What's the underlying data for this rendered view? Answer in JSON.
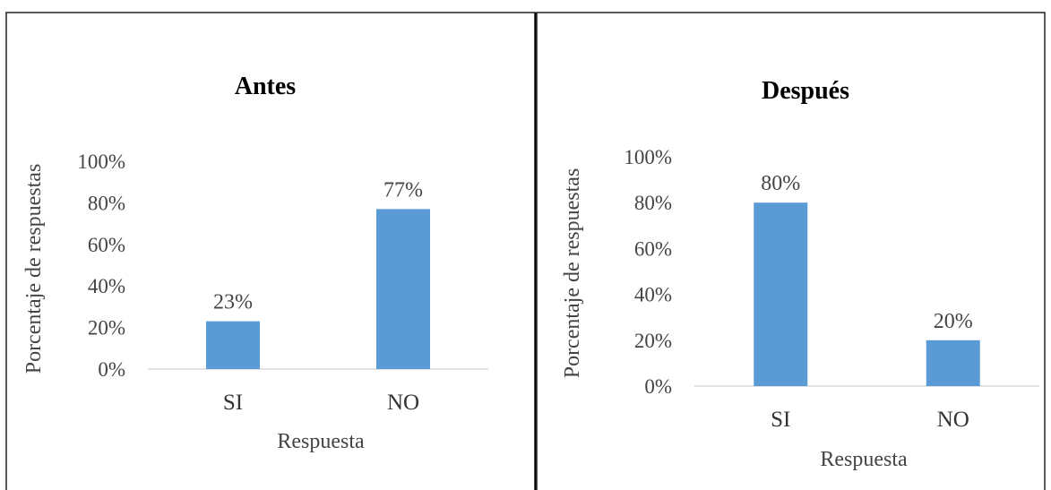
{
  "chart_data": [
    {
      "type": "bar",
      "title": "Antes",
      "xlabel": "Respuesta",
      "ylabel": "Porcentaje de respuestas",
      "categories": [
        "SI",
        "NO"
      ],
      "values": [
        23,
        77
      ],
      "data_labels": [
        "23%",
        "77%"
      ],
      "ylim": [
        0,
        100
      ],
      "yticks": [
        "0%",
        "20%",
        "40%",
        "60%",
        "80%",
        "100%"
      ],
      "grid": false,
      "legend": "none",
      "bar_color": "#5b9bd5"
    },
    {
      "type": "bar",
      "title": "Después",
      "xlabel": "Respuesta",
      "ylabel": "Porcentaje de respuestas",
      "categories": [
        "SI",
        "NO"
      ],
      "values": [
        80,
        20
      ],
      "data_labels": [
        "80%",
        "20%"
      ],
      "ylim": [
        0,
        100
      ],
      "yticks": [
        "0%",
        "20%",
        "40%",
        "60%",
        "80%",
        "100%"
      ],
      "grid": false,
      "legend": "none",
      "bar_color": "#5b9bd5"
    }
  ]
}
